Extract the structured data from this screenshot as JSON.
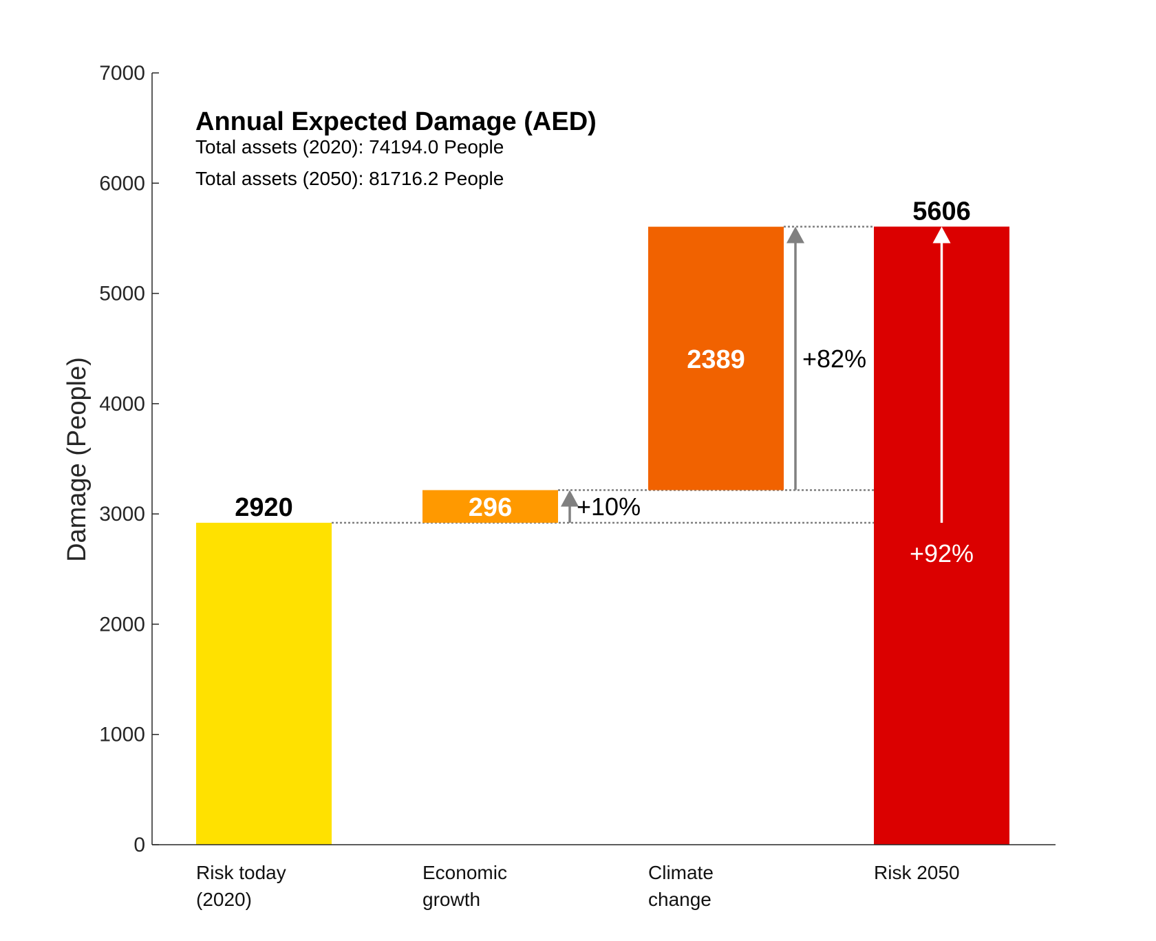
{
  "chart_data": {
    "type": "bar",
    "subtype": "waterfall",
    "title": "Annual Expected Damage (AED)",
    "subtitles": [
      "Total assets (2020): 74194.0  People",
      "Total assets (2050): 81716.2  People"
    ],
    "ylabel": "Damage (People)",
    "ylim": [
      0,
      7000
    ],
    "yticks": [
      0,
      1000,
      2000,
      3000,
      4000,
      5000,
      6000,
      7000
    ],
    "grid": false,
    "categories": [
      [
        "Risk today",
        "(2020)"
      ],
      [
        "Economic",
        "growth"
      ],
      [
        "Climate",
        "change"
      ],
      [
        "Risk 2050"
      ]
    ],
    "bars": [
      {
        "base": 0,
        "value": 2920,
        "label": "2920",
        "color": "#FFE100",
        "label_color": "#000000",
        "label_pos": "above"
      },
      {
        "base": 2920,
        "value": 296,
        "label": "296",
        "color": "#FF9900",
        "label_color": "#FFFFFF",
        "label_pos": "inside"
      },
      {
        "base": 3216,
        "value": 2389,
        "label": "2389",
        "color": "#F16200",
        "label_color": "#FFFFFF",
        "label_pos": "inside"
      },
      {
        "base": 0,
        "value": 5606,
        "label": "5606",
        "color": "#DB0000",
        "label_color": "#000000",
        "label_pos": "above"
      }
    ],
    "changes": [
      {
        "from": 2920,
        "to": 3216,
        "label": "+10%",
        "color": "#808080",
        "label_color": "#000000"
      },
      {
        "from": 3216,
        "to": 5606,
        "label": "+82%",
        "color": "#808080",
        "label_color": "#000000"
      },
      {
        "from": 2920,
        "to": 5606,
        "label": "+92%",
        "color": "#FFFFFF",
        "label_color": "#FFFFFF"
      }
    ]
  }
}
